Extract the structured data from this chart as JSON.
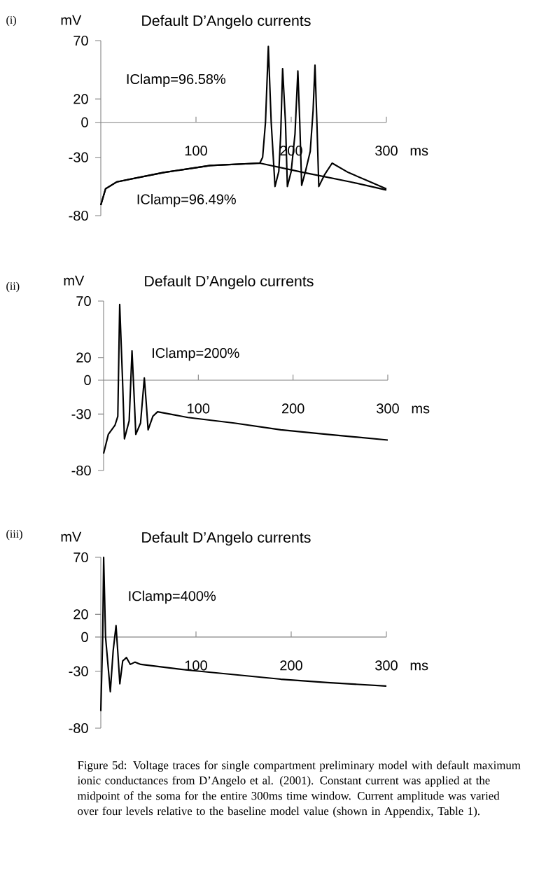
{
  "chart_data": [
    {
      "type": "line",
      "title": "Default D’Angelo currents",
      "xlabel": "ms",
      "ylabel": "mV",
      "xlim": [
        0,
        300
      ],
      "ylim": [
        -80,
        70
      ],
      "xticks": [
        100,
        200,
        300
      ],
      "yticks": [
        -80,
        -30,
        0,
        20,
        70
      ],
      "annotations": [
        "(i)"
      ],
      "series": [
        {
          "name": "IClamp=96.58%",
          "color": "#000000",
          "x": [
            0,
            5,
            17,
            66,
            115,
            167,
            170,
            173,
            176,
            179,
            183,
            187,
            189,
            191,
            194,
            196,
            200,
            204,
            207,
            209,
            211,
            215,
            220,
            223,
            225,
            227,
            229,
            235,
            243,
            260,
            280,
            300
          ],
          "values": [
            -71,
            -57,
            -51,
            -43,
            -37,
            -35,
            -30,
            0,
            65,
            0,
            -55,
            -42,
            -10,
            46,
            0,
            -55,
            -42,
            -10,
            44,
            0,
            -54,
            -42,
            -25,
            10,
            49,
            0,
            -55,
            -45,
            -35,
            -43,
            -50,
            -57
          ]
        },
        {
          "name": "IClamp=96.49%",
          "color": "#000000",
          "x": [
            0,
            5,
            17,
            66,
            115,
            167,
            213,
            262,
            300
          ],
          "values": [
            -71,
            -57,
            -51,
            -43,
            -37,
            -35,
            -43,
            -51,
            -58
          ]
        }
      ]
    },
    {
      "type": "line",
      "title": "Default D’Angelo currents",
      "xlabel": "ms",
      "ylabel": "mV",
      "xlim": [
        0,
        300
      ],
      "ylim": [
        -80,
        70
      ],
      "xticks": [
        100,
        200,
        300
      ],
      "yticks": [
        -80,
        -30,
        0,
        20,
        70
      ],
      "annotations": [
        "(ii)"
      ],
      "series": [
        {
          "name": "IClamp=200%",
          "color": "#000000",
          "x": [
            0,
            5,
            12,
            15,
            17,
            20,
            22,
            27,
            30,
            32,
            34,
            39,
            43,
            45,
            47,
            52,
            57,
            89,
            138,
            187,
            236,
            300
          ],
          "values": [
            -65,
            -48,
            -40,
            -32,
            67,
            0,
            -52,
            -36,
            26,
            -10,
            -48,
            -38,
            2,
            -20,
            -44,
            -32,
            -28,
            -33,
            -38,
            -44,
            -48,
            -53
          ]
        }
      ]
    },
    {
      "type": "line",
      "title": "Default D’Angelo currents",
      "xlabel": "ms",
      "ylabel": "mV",
      "xlim": [
        0,
        300
      ],
      "ylim": [
        -80,
        70
      ],
      "xticks": [
        100,
        200,
        300
      ],
      "yticks": [
        -80,
        -30,
        0,
        20,
        70
      ],
      "annotations": [
        "(iii)",
        "Figure 5d: Voltage traces for single compartment preliminary model with default maximum ionic conductances from D’Angelo et al. (2001). Constant current was applied at the midpoint of the soma for the entire 300ms time window. Current amplitude was varied over four levels relative to the baseline model value (shown in Appendix, Table 1)."
      ],
      "series": [
        {
          "name": "IClamp=400%",
          "color": "#000000",
          "x": [
            0,
            2,
            3,
            5,
            10,
            13,
            16,
            18,
            20,
            23,
            27,
            31,
            36,
            42,
            91,
            140,
            189,
            238,
            300
          ],
          "values": [
            -65,
            0,
            70,
            0,
            -48,
            -12,
            10,
            -15,
            -41,
            -21,
            -18,
            -24,
            -22,
            -24,
            -29,
            -33,
            -37,
            -40,
            -43
          ]
        }
      ]
    }
  ]
}
